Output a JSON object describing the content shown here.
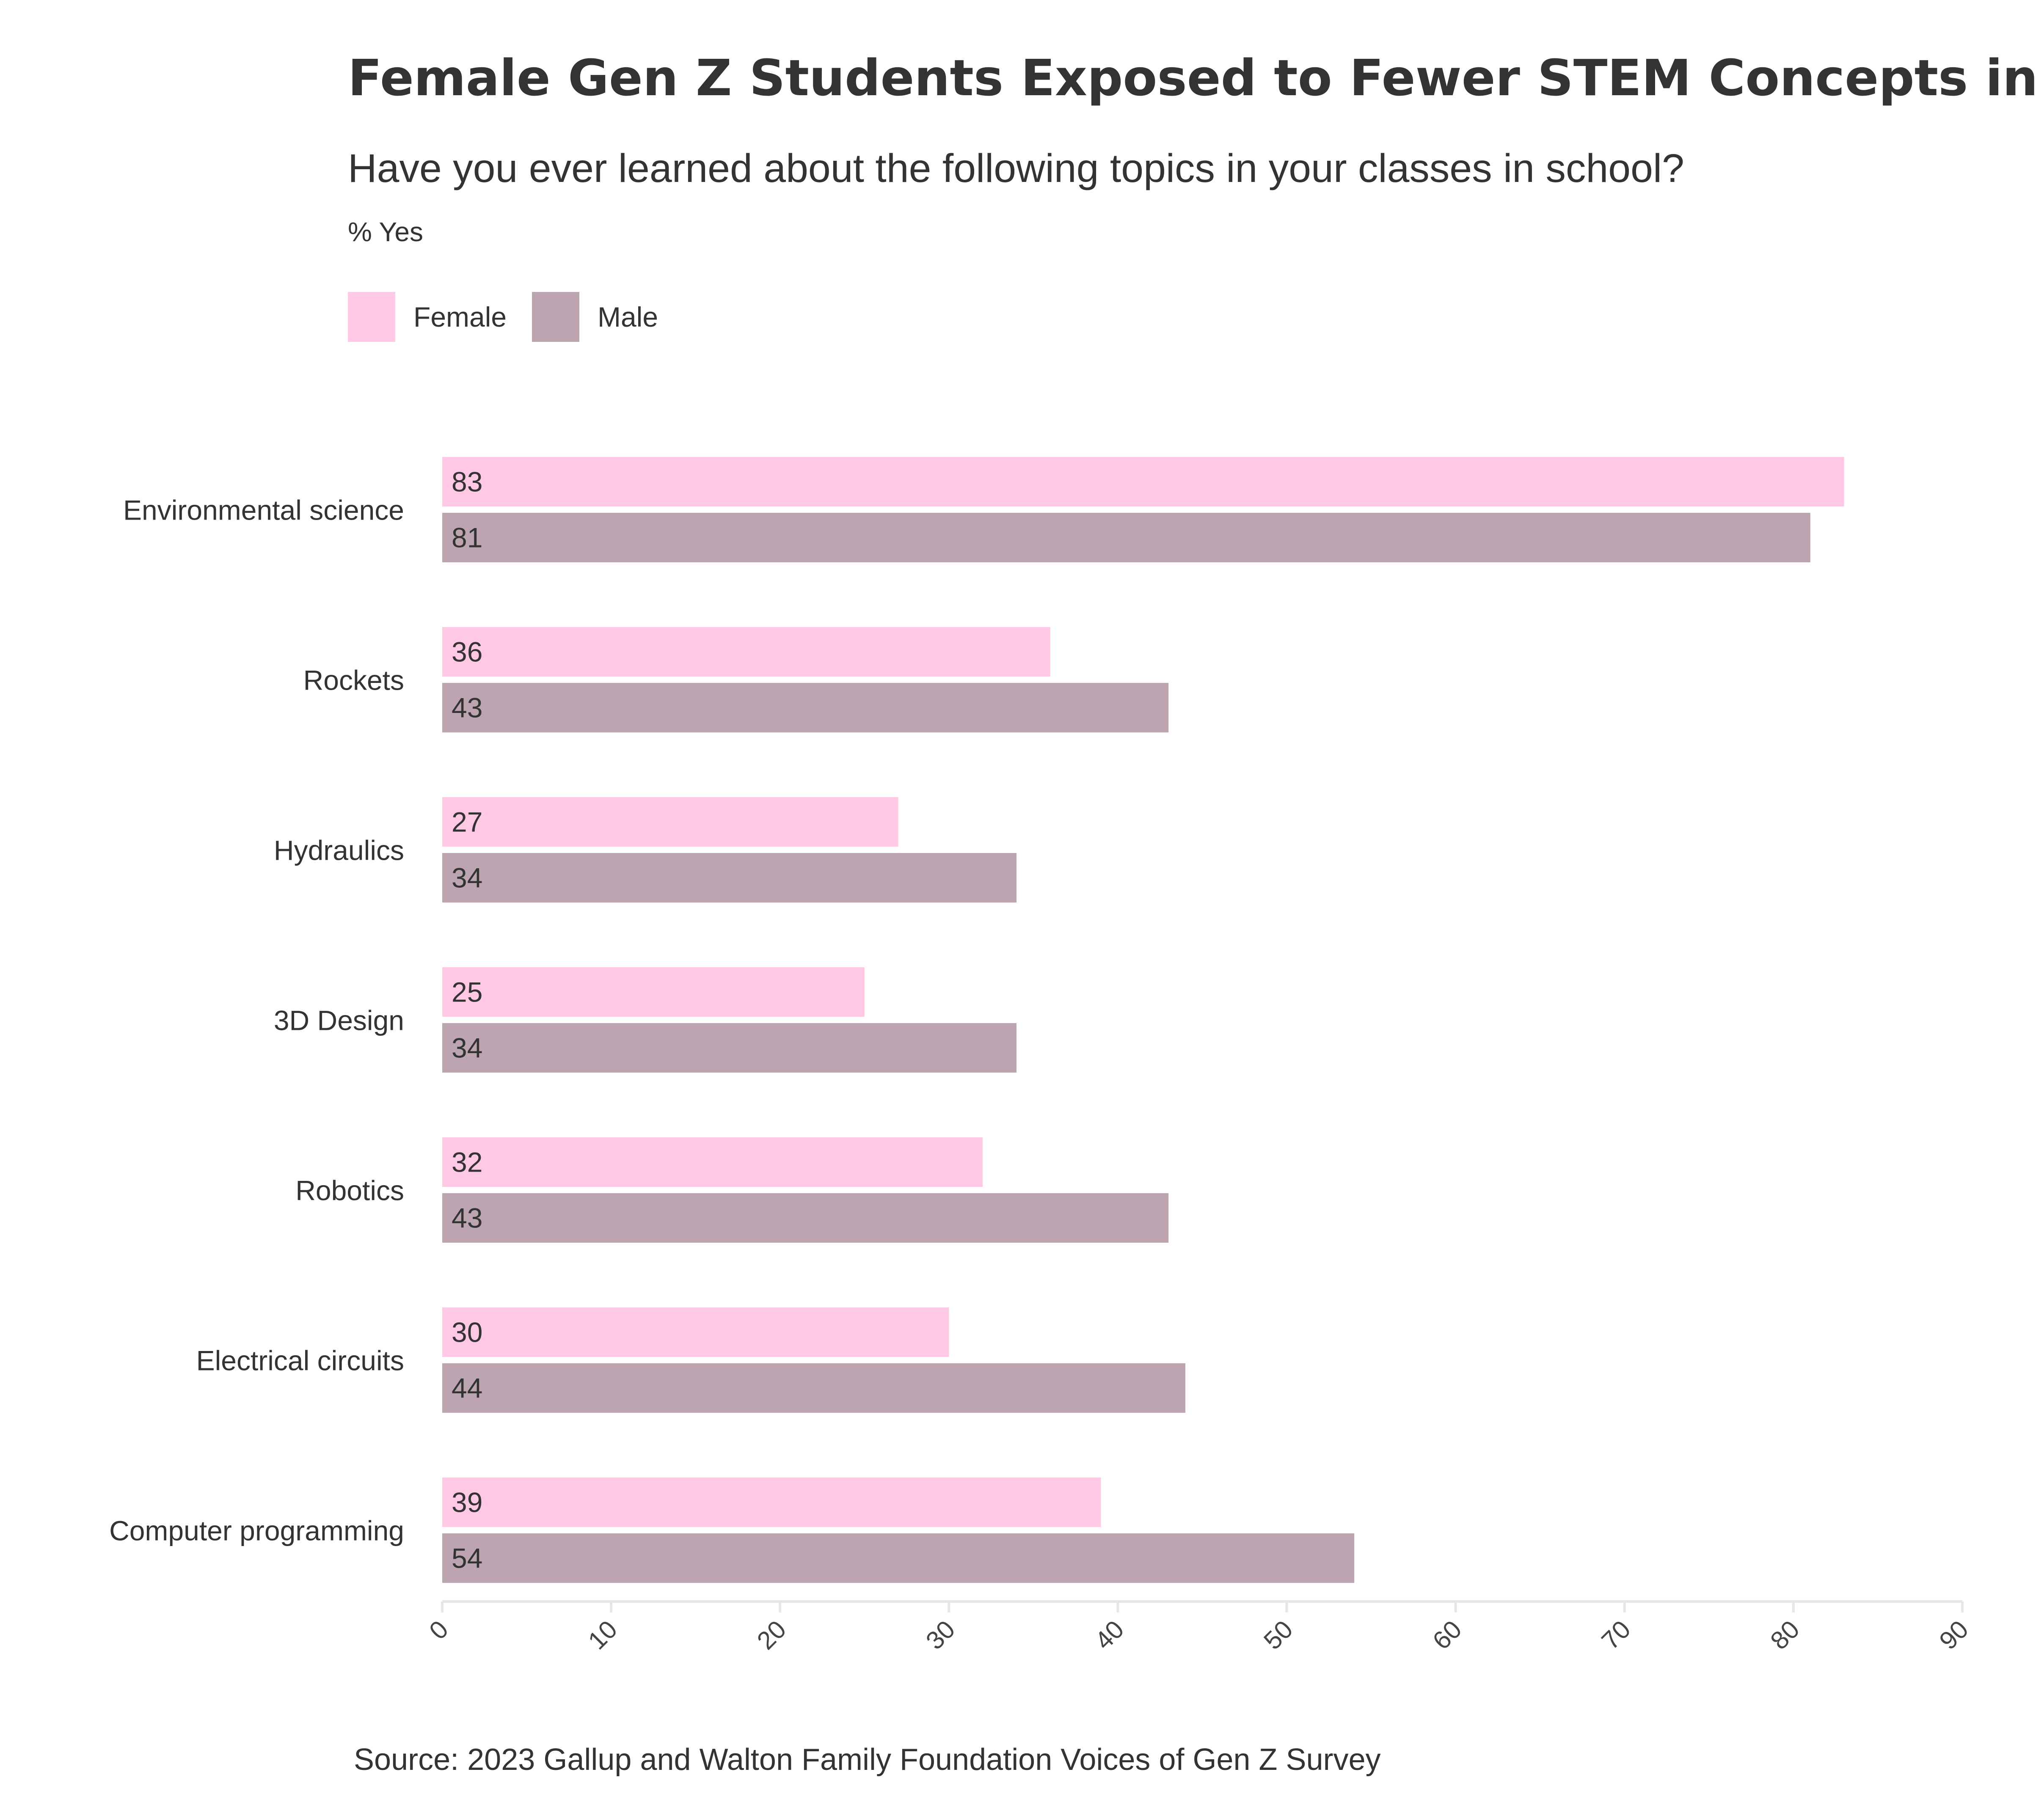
{
  "chart_data": {
    "type": "bar",
    "orientation": "horizontal",
    "title": "Female Gen Z Students Exposed to Fewer STEM Concepts in School",
    "subtitle": "Have you ever learned about the following topics in your classes in school?",
    "measure_label": "% Yes",
    "categories": [
      "Environmental science",
      "Rockets",
      "Hydraulics",
      "3D Design",
      "Robotics",
      "Electrical circuits",
      "Computer programming"
    ],
    "series": [
      {
        "name": "Female",
        "color": "#ffc8e4",
        "values": [
          83,
          36,
          27,
          25,
          32,
          30,
          39
        ]
      },
      {
        "name": "Male",
        "color": "#bca4b0",
        "values": [
          81,
          43,
          34,
          34,
          43,
          44,
          54
        ]
      }
    ],
    "xlim": [
      0,
      90
    ],
    "xticks": [
      0,
      10,
      20,
      30,
      40,
      50,
      60,
      70,
      80,
      90
    ],
    "legend_position": "top-left",
    "grid": false,
    "source": "Source: 2023 Gallup and Walton Family Foundation Voices of Gen Z Survey"
  }
}
